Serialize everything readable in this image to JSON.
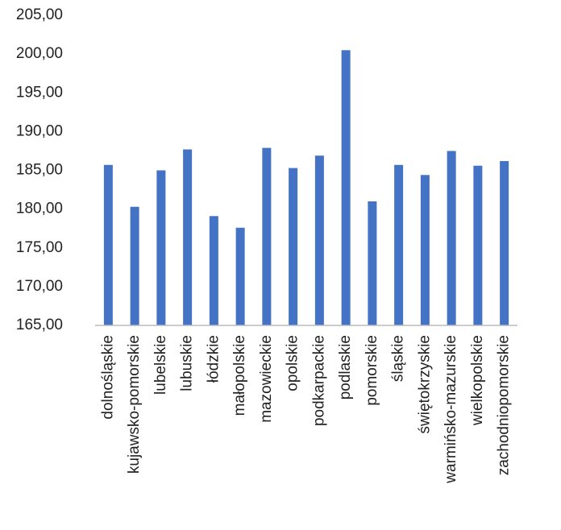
{
  "chart_data": {
    "type": "bar",
    "categories": [
      "dolnośląskie",
      "kujawsko-pomorskie",
      "lubelskie",
      "lubuskie",
      "łódzkie",
      "małopolskie",
      "mazowieckie",
      "opolskie",
      "podkarpackie",
      "podlaskie",
      "pomorskie",
      "śląskie",
      "świętokrzyskie",
      "warmińsko-mazurskie",
      "wielkopolskie",
      "zachodniopomorskie"
    ],
    "values": [
      185.7,
      180.3,
      185.0,
      187.7,
      179.1,
      177.6,
      187.9,
      185.3,
      186.9,
      200.5,
      181.0,
      185.7,
      184.4,
      187.5,
      185.6,
      186.2
    ],
    "color": "#4472c4",
    "ylim": [
      165,
      205
    ],
    "yticks": [
      {
        "value": 165,
        "label": "165,00"
      },
      {
        "value": 170,
        "label": "170,00"
      },
      {
        "value": 175,
        "label": "175,00"
      },
      {
        "value": 180,
        "label": "180,00"
      },
      {
        "value": 185,
        "label": "185,00"
      },
      {
        "value": 190,
        "label": "190,00"
      },
      {
        "value": 195,
        "label": "195,00"
      },
      {
        "value": 200,
        "label": "200,00"
      },
      {
        "value": 205,
        "label": "205,00"
      }
    ],
    "grid": false
  }
}
